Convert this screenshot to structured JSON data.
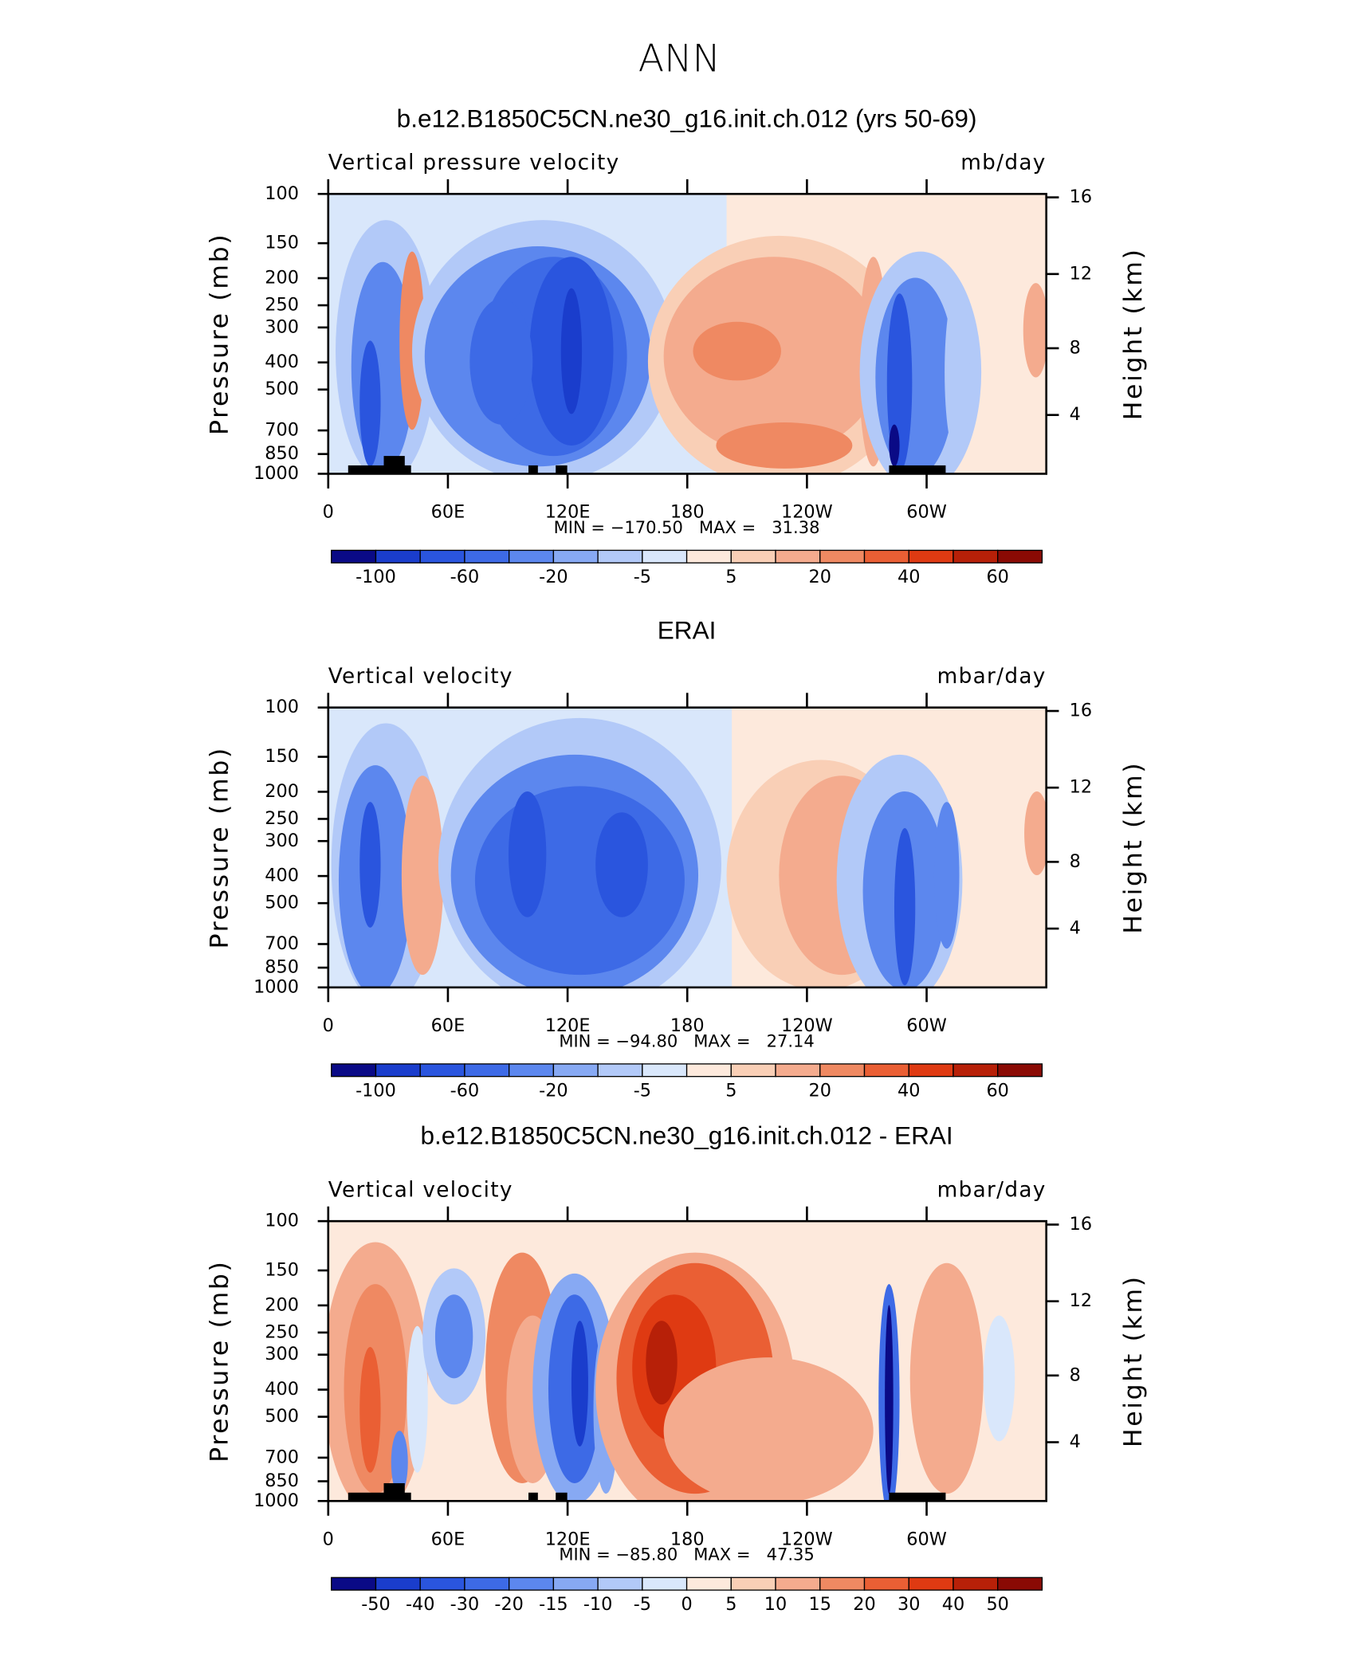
{
  "title": "ANN",
  "chart_data": [
    {
      "type": "contour",
      "title": "b.e12.B1850C5CN.ne30_g16.init.ch.012 (yrs 50-69)",
      "left_label": "Vertical pressure velocity",
      "right_label": "mb/day",
      "y_label": "Pressure (mb)",
      "y2_label": "Height (km)",
      "xlim": [
        0,
        360
      ],
      "xticks": [
        0,
        {
          "value": 60,
          "label": "60E"
        },
        {
          "value": 120,
          "label": "120E"
        },
        180,
        {
          "value": 240,
          "label": "120W"
        },
        {
          "value": 300,
          "label": "60W"
        }
      ],
      "ylim": [
        1000,
        100
      ],
      "log_y": true,
      "yticks": [
        100,
        150,
        200,
        250,
        300,
        400,
        500,
        700,
        850,
        1000
      ],
      "y2ticks": [
        4,
        8,
        12,
        16
      ],
      "stats": "MIN = −170.50   MAX =   31.38",
      "colorbar": {
        "colors": [
          "#0a0a86",
          "#1a3dcc",
          "#2a55de",
          "#3d6ae6",
          "#5c87ee",
          "#87a9f3",
          "#b2c9f8",
          "#d9e7fb",
          "#fde9dc",
          "#f9cfb6",
          "#f4ab8e",
          "#ef8962",
          "#ea5f34",
          "#df3a12",
          "#b72008",
          "#8a0a04"
        ],
        "labels": [
          -100,
          -60,
          -20,
          -5,
          5,
          20,
          40,
          60
        ]
      }
    },
    {
      "type": "contour",
      "title": "ERAI",
      "left_label": "Vertical velocity",
      "right_label": "mbar/day",
      "y_label": "Pressure (mb)",
      "y2_label": "Height (km)",
      "xlim": [
        0,
        360
      ],
      "xticks": [
        0,
        {
          "value": 60,
          "label": "60E"
        },
        {
          "value": 120,
          "label": "120E"
        },
        180,
        {
          "value": 240,
          "label": "120W"
        },
        {
          "value": 300,
          "label": "60W"
        }
      ],
      "ylim": [
        1000,
        100
      ],
      "log_y": true,
      "yticks": [
        100,
        150,
        200,
        250,
        300,
        400,
        500,
        700,
        850,
        1000
      ],
      "y2ticks": [
        4,
        8,
        12,
        16
      ],
      "stats": "MIN = −94.80   MAX =   27.14",
      "colorbar": {
        "colors": [
          "#0a0a86",
          "#1a3dcc",
          "#2a55de",
          "#3d6ae6",
          "#5c87ee",
          "#87a9f3",
          "#b2c9f8",
          "#d9e7fb",
          "#fde9dc",
          "#f9cfb6",
          "#f4ab8e",
          "#ef8962",
          "#ea5f34",
          "#df3a12",
          "#b72008",
          "#8a0a04"
        ],
        "labels": [
          -100,
          -60,
          -20,
          -5,
          5,
          20,
          40,
          60
        ]
      }
    },
    {
      "type": "contour",
      "title": "b.e12.B1850C5CN.ne30_g16.init.ch.012 - ERAI",
      "left_label": "Vertical velocity",
      "right_label": "mbar/day",
      "y_label": "Pressure (mb)",
      "y2_label": "Height (km)",
      "xlim": [
        0,
        360
      ],
      "xticks": [
        0,
        {
          "value": 60,
          "label": "60E"
        },
        {
          "value": 120,
          "label": "120E"
        },
        180,
        {
          "value": 240,
          "label": "120W"
        },
        {
          "value": 300,
          "label": "60W"
        }
      ],
      "ylim": [
        1000,
        100
      ],
      "log_y": true,
      "yticks": [
        100,
        150,
        200,
        250,
        300,
        400,
        500,
        700,
        850,
        1000
      ],
      "y2ticks": [
        4,
        8,
        12,
        16
      ],
      "stats": "MIN = −85.80   MAX =   47.35",
      "colorbar": {
        "colors": [
          "#0a0a86",
          "#1a3dcc",
          "#2a55de",
          "#3d6ae6",
          "#5c87ee",
          "#87a9f3",
          "#b2c9f8",
          "#d9e7fb",
          "#fde9dc",
          "#f9cfb6",
          "#f4ab8e",
          "#ef8962",
          "#ea5f34",
          "#df3a12",
          "#b72008",
          "#8a0a04"
        ],
        "labels": [
          -50,
          -40,
          -30,
          -20,
          -15,
          -10,
          -5,
          0,
          5,
          10,
          15,
          20,
          30,
          40,
          50
        ]
      }
    }
  ]
}
